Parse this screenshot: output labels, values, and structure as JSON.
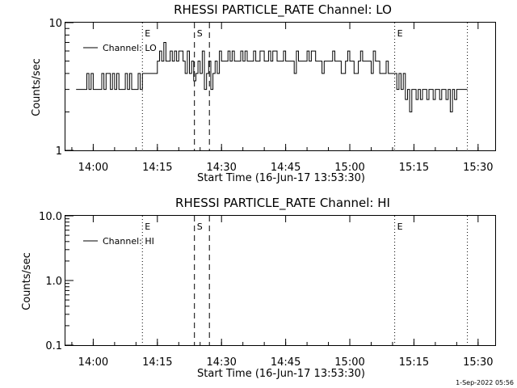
{
  "footer_date": "1-Sep-2022 05:56",
  "chart_data": [
    {
      "type": "line",
      "title": "RHESSI PARTICLE_RATE Channel: LO",
      "xlabel": "Start Time (16-Jun-17 13:53:30)",
      "ylabel": "Counts/sec",
      "yscale": "log",
      "xlim": [
        "13:53:30",
        "15:34:00"
      ],
      "ylim": [
        1,
        10
      ],
      "xticks": [
        "14:00",
        "14:15",
        "14:30",
        "14:45",
        "15:00",
        "15:15",
        "15:30"
      ],
      "yticks": [
        "1",
        "10"
      ],
      "legend": "Channel: LO",
      "legend_position": "top-left",
      "markers": [
        {
          "time": "14:11:30",
          "style": "dotted",
          "label": "E"
        },
        {
          "time": "14:23:40",
          "style": "dashed",
          "label": "S"
        },
        {
          "time": "14:27:10",
          "style": "dashed",
          "label": ""
        },
        {
          "time": "15:10:30",
          "style": "dotted",
          "label": "E"
        },
        {
          "time": "15:27:30",
          "style": "dotted",
          "label": ""
        }
      ],
      "series": [
        {
          "name": "Channel: LO",
          "x": [
            "13:56:00",
            "13:58:00",
            "13:58:30",
            "13:59:00",
            "13:59:30",
            "14:00:00",
            "14:01:30",
            "14:02:00",
            "14:02:30",
            "14:03:00",
            "14:04:00",
            "14:04:30",
            "14:05:00",
            "14:05:30",
            "14:06:00",
            "14:07:00",
            "14:07:30",
            "14:08:00",
            "14:08:30",
            "14:09:00",
            "14:10:00",
            "14:10:30",
            "14:11:00",
            "14:11:30",
            "14:15:00",
            "14:15:30",
            "14:16:00",
            "14:16:30",
            "14:17:00",
            "14:18:00",
            "14:18:30",
            "14:19:00",
            "14:19:30",
            "14:20:00",
            "14:21:00",
            "14:21:30",
            "14:22:00",
            "14:22:30",
            "14:23:00",
            "14:23:30",
            "14:24:00",
            "14:24:30",
            "14:25:00",
            "14:25:30",
            "14:26:00",
            "14:26:30",
            "14:27:00",
            "14:27:30",
            "14:28:00",
            "14:28:30",
            "14:29:00",
            "14:29:30",
            "14:30:00",
            "14:31:00",
            "14:31:30",
            "14:32:00",
            "14:32:30",
            "14:33:00",
            "14:34:00",
            "14:34:30",
            "14:35:00",
            "14:35:30",
            "14:36:00",
            "14:37:00",
            "14:37:30",
            "14:38:00",
            "14:38:30",
            "14:39:00",
            "14:40:00",
            "14:41:00",
            "14:41:30",
            "14:42:00",
            "14:43:00",
            "14:44:00",
            "14:44:30",
            "14:45:00",
            "14:46:00",
            "14:47:00",
            "14:47:30",
            "14:48:00",
            "14:49:00",
            "14:50:00",
            "14:50:30",
            "14:51:00",
            "14:52:00",
            "14:53:00",
            "14:53:30",
            "14:54:00",
            "14:55:00",
            "14:56:00",
            "14:56:30",
            "14:57:00",
            "14:58:00",
            "14:59:00",
            "14:59:30",
            "15:00:00",
            "15:01:00",
            "15:02:00",
            "15:02:30",
            "15:03:00",
            "15:04:00",
            "15:05:00",
            "15:05:30",
            "15:06:00",
            "15:07:00",
            "15:08:00",
            "15:08:30",
            "15:09:00",
            "15:10:00",
            "15:10:30",
            "15:11:00",
            "15:11:30",
            "15:12:00",
            "15:12:30",
            "15:13:00",
            "15:13:30",
            "15:14:00",
            "15:14:30",
            "15:15:00",
            "15:15:30",
            "15:16:00",
            "15:16:30",
            "15:17:00",
            "15:17:30",
            "15:18:00",
            "15:18:30",
            "15:19:00",
            "15:19:30",
            "15:20:00",
            "15:20:30",
            "15:21:00",
            "15:21:30",
            "15:22:00",
            "15:22:30",
            "15:23:00",
            "15:23:30",
            "15:24:00",
            "15:24:30",
            "15:25:00",
            "15:25:30",
            "15:26:00",
            "15:27:30"
          ],
          "y": [
            3,
            3,
            4,
            3,
            4,
            3,
            3,
            4,
            3,
            4,
            3,
            4,
            3,
            4,
            3,
            3,
            4,
            3,
            4,
            3,
            3,
            4,
            3,
            4,
            5,
            6,
            5,
            7,
            5,
            6,
            5,
            6,
            5,
            6,
            5,
            4,
            6,
            4,
            5,
            3.5,
            4,
            5,
            4,
            6,
            3,
            4,
            5,
            3,
            4,
            5,
            4,
            6,
            5,
            5,
            6,
            5,
            6,
            5,
            5,
            6,
            5,
            6,
            5,
            5,
            6,
            5,
            5,
            6,
            5,
            6,
            5,
            6,
            5,
            5,
            6,
            5,
            5,
            4,
            6,
            5,
            5,
            6,
            5,
            6,
            5,
            5,
            4,
            5,
            5,
            6,
            5,
            5,
            4,
            5,
            6,
            5,
            4,
            5,
            6,
            5,
            5,
            4,
            6,
            5,
            4,
            4,
            5,
            4,
            4,
            4,
            3,
            4,
            3,
            4,
            2.5,
            3,
            2,
            3,
            3,
            2.5,
            3,
            2.5,
            3,
            3,
            2.5,
            3,
            3,
            2.5,
            3,
            3,
            2.5,
            3,
            3,
            2.5,
            3,
            2,
            3,
            2.5,
            3,
            3,
            3,
            3
          ]
        }
      ]
    },
    {
      "type": "line",
      "title": "RHESSI PARTICLE_RATE Channel: HI",
      "xlabel": "Start Time (16-Jun-17 13:53:30)",
      "ylabel": "Counts/sec",
      "yscale": "log",
      "xlim": [
        "13:53:30",
        "15:34:00"
      ],
      "ylim": [
        0.1,
        10
      ],
      "xticks": [
        "14:00",
        "14:15",
        "14:30",
        "14:45",
        "15:00",
        "15:15",
        "15:30"
      ],
      "yticks": [
        "0.1",
        "1.0",
        "10.0"
      ],
      "legend": "Channel: HI",
      "legend_position": "top-left",
      "markers": [
        {
          "time": "14:11:30",
          "style": "dotted",
          "label": "E"
        },
        {
          "time": "14:23:40",
          "style": "dashed",
          "label": "S"
        },
        {
          "time": "14:27:10",
          "style": "dashed",
          "label": ""
        },
        {
          "time": "15:10:30",
          "style": "dotted",
          "label": "E"
        },
        {
          "time": "15:27:30",
          "style": "dotted",
          "label": ""
        }
      ],
      "series": [
        {
          "name": "Channel: HI",
          "x": [],
          "y": []
        }
      ]
    }
  ]
}
